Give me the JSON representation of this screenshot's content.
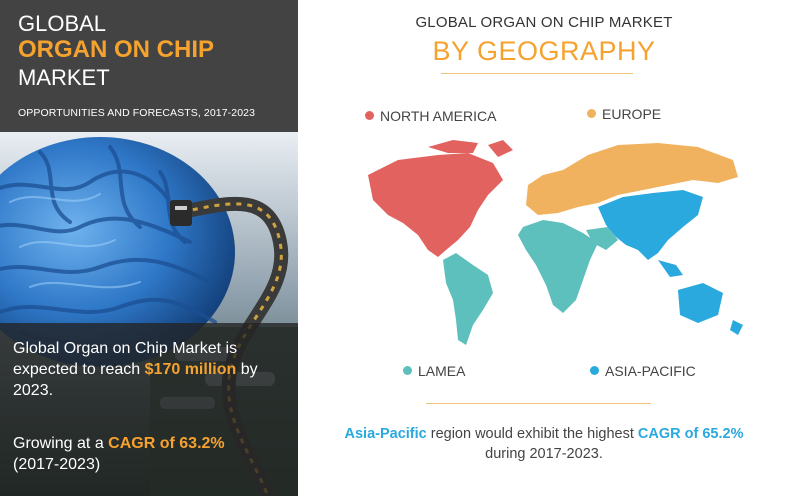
{
  "header": {
    "line1": "GLOBAL",
    "line2": "ORGAN ON CHIP",
    "line3": "MARKET",
    "subtitle": "OPPORTUNITIES AND FORECASTS, 2017-2023"
  },
  "overlay": {
    "stat1_prefix": "Global Organ on Chip Market is expected to reach",
    "stat1_value": "$170 million",
    "stat1_suffix": "by 2023.",
    "stat2_prefix": "Growing at a",
    "stat2_value": "CAGR of 63.2%",
    "stat2_suffix": "(2017-2023)"
  },
  "map": {
    "title": "GLOBAL ORGAN ON CHIP MARKET",
    "subtitle": "BY GEOGRAPHY",
    "regions": [
      {
        "label": "NORTH AMERICA",
        "color": "#e2625f"
      },
      {
        "label": "EUROPE",
        "color": "#f0b25e"
      },
      {
        "label": "LAMEA",
        "color": "#5ec0bc"
      },
      {
        "label": "ASIA-PACIFIC",
        "color": "#2aa9de"
      }
    ]
  },
  "note": {
    "region": "Asia-Pacific",
    "mid": "region would exhibit the highest",
    "cagr": "CAGR of 65.2%",
    "period": "during 2017-2023."
  },
  "colors": {
    "accent": "#f5a22f",
    "blue": "#2aa9de",
    "header_bg": "#434343"
  },
  "icons": [
    "brain-image",
    "cable-icon",
    "world-map"
  ]
}
